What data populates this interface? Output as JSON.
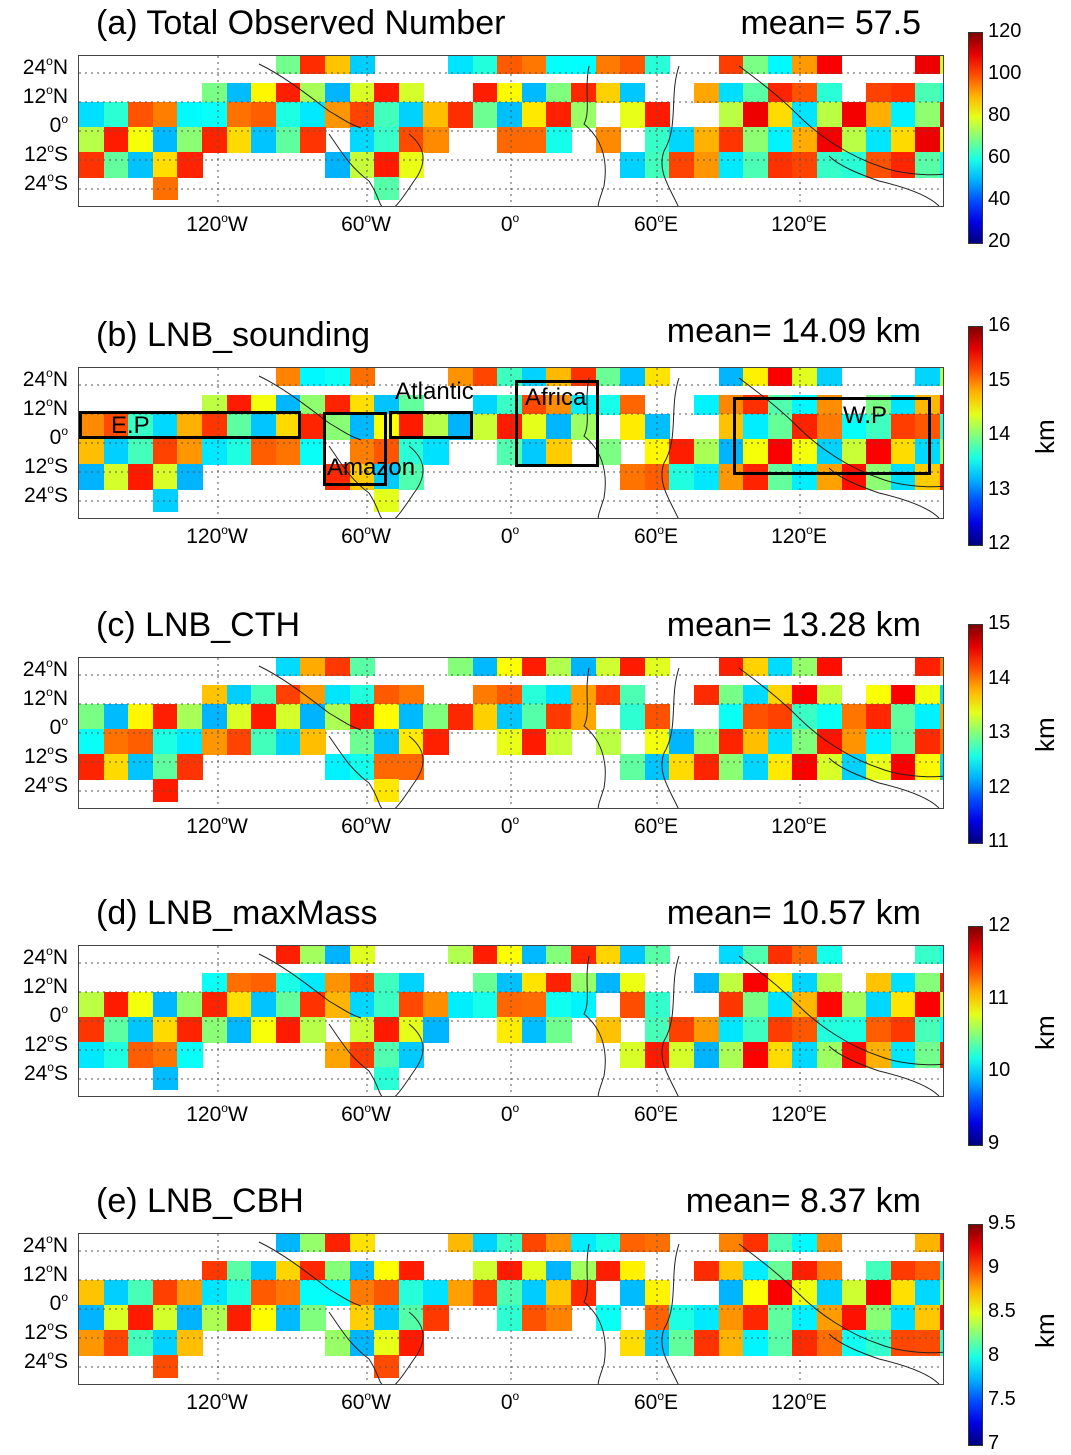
{
  "lat_labels": [
    "24°N",
    "12°N",
    "0°",
    "12°S",
    "24°S"
  ],
  "lon_labels": [
    "120°W",
    "60°W",
    "0°",
    "60°E",
    "120°E"
  ],
  "colors": {
    "jet_low": "#00008f",
    "jet_high": "#800000"
  },
  "panels": [
    {
      "title": "(a) Total Observed Number",
      "mean": "mean= 57.5",
      "unit": "",
      "colorbar_ticks": [
        "120",
        "100",
        "80",
        "60",
        "40",
        "20"
      ],
      "vmin": 20,
      "vmax": 125
    },
    {
      "title": "(b) LNB_sounding",
      "mean": "mean= 14.09 km",
      "unit": "km",
      "colorbar_ticks": [
        "16",
        "15",
        "14",
        "13",
        "12"
      ],
      "vmin": 12,
      "vmax": 16,
      "regions": [
        "E.P",
        "Amazon",
        "Atlantic",
        "Africa",
        "W.P"
      ]
    },
    {
      "title": "(c) LNB_CTH",
      "mean": "mean= 13.28 km",
      "unit": "km",
      "colorbar_ticks": [
        "15",
        "14",
        "13",
        "12",
        "11"
      ],
      "vmin": 11,
      "vmax": 15
    },
    {
      "title": "(d) LNB_maxMass",
      "mean": "mean= 10.57 km",
      "unit": "km",
      "colorbar_ticks": [
        "12",
        "11",
        "10",
        "9"
      ],
      "vmin": 9,
      "vmax": 12
    },
    {
      "title": "(e) LNB_CBH",
      "mean": "mean= 8.37 km",
      "unit": "km",
      "colorbar_ticks": [
        "9.5",
        "9",
        "8.5",
        "8",
        "7.5",
        "7"
      ],
      "vmin": 7,
      "vmax": 9.5
    }
  ]
}
